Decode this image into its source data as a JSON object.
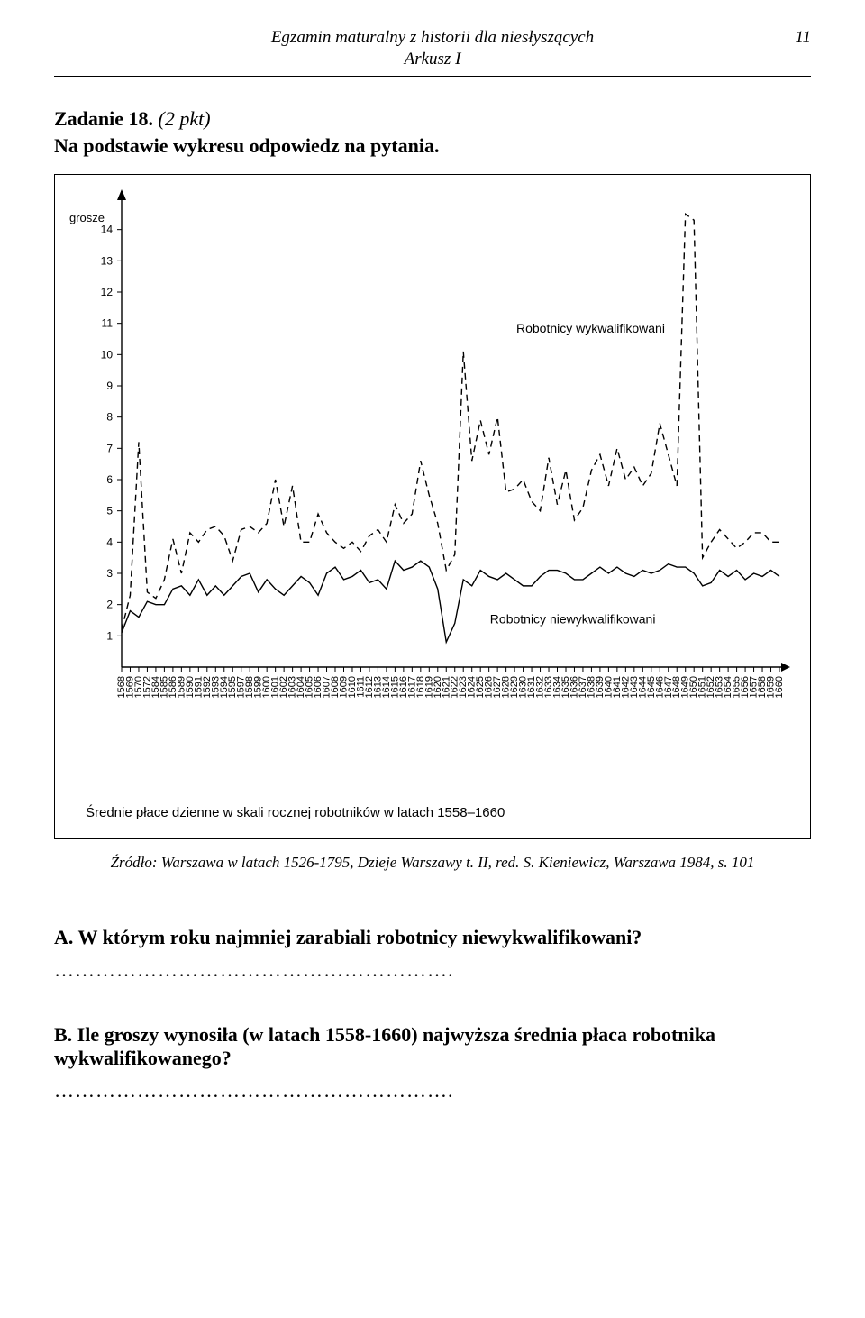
{
  "page": {
    "running_title_1": "Egzamin maturalny z historii dla niesłyszących",
    "running_title_2": "Arkusz I",
    "page_number": "11"
  },
  "task": {
    "label": "Zadanie 18.",
    "points": "(2 pkt)",
    "instruction": "Na podstawie wykresu odpowiedz na pytania."
  },
  "chart": {
    "type": "line",
    "y_axis_label": "grosze",
    "y_ticks": [
      1,
      2,
      3,
      4,
      5,
      6,
      7,
      8,
      9,
      10,
      11,
      12,
      13,
      14
    ],
    "x_ticks": [
      "1568",
      "1569",
      "1570",
      "1572",
      "1584",
      "1585",
      "1586",
      "1589",
      "1590",
      "1591",
      "1592",
      "1593",
      "1594",
      "1595",
      "1597",
      "1598",
      "1599",
      "1600",
      "1601",
      "1602",
      "1603",
      "1604",
      "1605",
      "1606",
      "1607",
      "1608",
      "1609",
      "1610",
      "1611",
      "1612",
      "1613",
      "1614",
      "1615",
      "1616",
      "1617",
      "1618",
      "1619",
      "1620",
      "1621",
      "1622",
      "1623",
      "1624",
      "1625",
      "1626",
      "1627",
      "1628",
      "1629",
      "1630",
      "1631",
      "1632",
      "1633",
      "1634",
      "1635",
      "1636",
      "1637",
      "1638",
      "1639",
      "1640",
      "1641",
      "1642",
      "1643",
      "1644",
      "1645",
      "1646",
      "1647",
      "1648",
      "1649",
      "1650",
      "1651",
      "1652",
      "1653",
      "1654",
      "1655",
      "1656",
      "1657",
      "1658",
      "1659",
      "1660"
    ],
    "series1": {
      "label": "Robotnicy wykwalifikowani",
      "style": "dashed",
      "color": "#000000",
      "values": [
        1.2,
        2.3,
        7.2,
        2.4,
        2.2,
        2.8,
        4.1,
        3.0,
        4.3,
        4.0,
        4.4,
        4.5,
        4.2,
        3.4,
        4.4,
        4.5,
        4.3,
        4.6,
        6.0,
        4.5,
        5.8,
        4.0,
        4.0,
        4.9,
        4.3,
        4.0,
        3.8,
        4.0,
        3.7,
        4.2,
        4.4,
        4.0,
        5.2,
        4.6,
        4.9,
        6.6,
        5.5,
        4.6,
        3.1,
        3.6,
        10.1,
        6.6,
        7.9,
        6.8,
        8.0,
        5.6,
        5.7,
        6.0,
        5.3,
        5.0,
        6.7,
        5.2,
        6.3,
        4.7,
        5.1,
        6.3,
        6.8,
        5.8,
        7.0,
        6.0,
        6.4,
        5.8,
        6.2,
        7.8,
        6.8,
        5.8,
        14.5,
        14.3,
        3.5,
        4.0,
        4.4,
        4.1,
        3.8,
        4.0,
        4.3,
        4.3,
        4.0,
        4.0
      ]
    },
    "series2": {
      "label": "Robotnicy niewykwalifikowani",
      "style": "solid",
      "color": "#000000",
      "values": [
        1.1,
        1.8,
        1.6,
        2.1,
        2.0,
        2.0,
        2.5,
        2.6,
        2.3,
        2.8,
        2.3,
        2.6,
        2.3,
        2.6,
        2.9,
        3.0,
        2.4,
        2.8,
        2.5,
        2.3,
        2.6,
        2.9,
        2.7,
        2.3,
        3.0,
        3.2,
        2.8,
        2.9,
        3.1,
        2.7,
        2.8,
        2.5,
        3.4,
        3.1,
        3.2,
        3.4,
        3.2,
        2.5,
        0.8,
        1.4,
        2.8,
        2.6,
        3.1,
        2.9,
        2.8,
        3.0,
        2.8,
        2.6,
        2.6,
        2.9,
        3.1,
        3.1,
        3.0,
        2.8,
        2.8,
        3.0,
        3.2,
        3.0,
        3.2,
        3.0,
        2.9,
        3.1,
        3.0,
        3.1,
        3.3,
        3.2,
        3.2,
        3.0,
        2.6,
        2.7,
        3.1,
        2.9,
        3.1,
        2.8,
        3.0,
        2.9,
        3.1,
        2.9
      ]
    },
    "caption": "Średnie płace dzienne w skali rocznej robotników w latach 1558–1660",
    "caption_fontsize": 15,
    "axis_fontsize": 11,
    "background_color": "#ffffff",
    "line_width": 1.4
  },
  "source": "Źródło: Warszawa w latach 1526-1795, Dzieje Warszawy t. II, red. S. Kieniewicz, Warszawa 1984, s. 101",
  "questions": {
    "a": "A. W którym roku najmniej zarabiali robotnicy niewykwalifikowani?",
    "b": "B. Ile groszy wynosiła (w latach 1558-1660) najwyższa średnia płaca robotnika wykwalifikowanego?"
  },
  "dotted": "…………………………………………………."
}
